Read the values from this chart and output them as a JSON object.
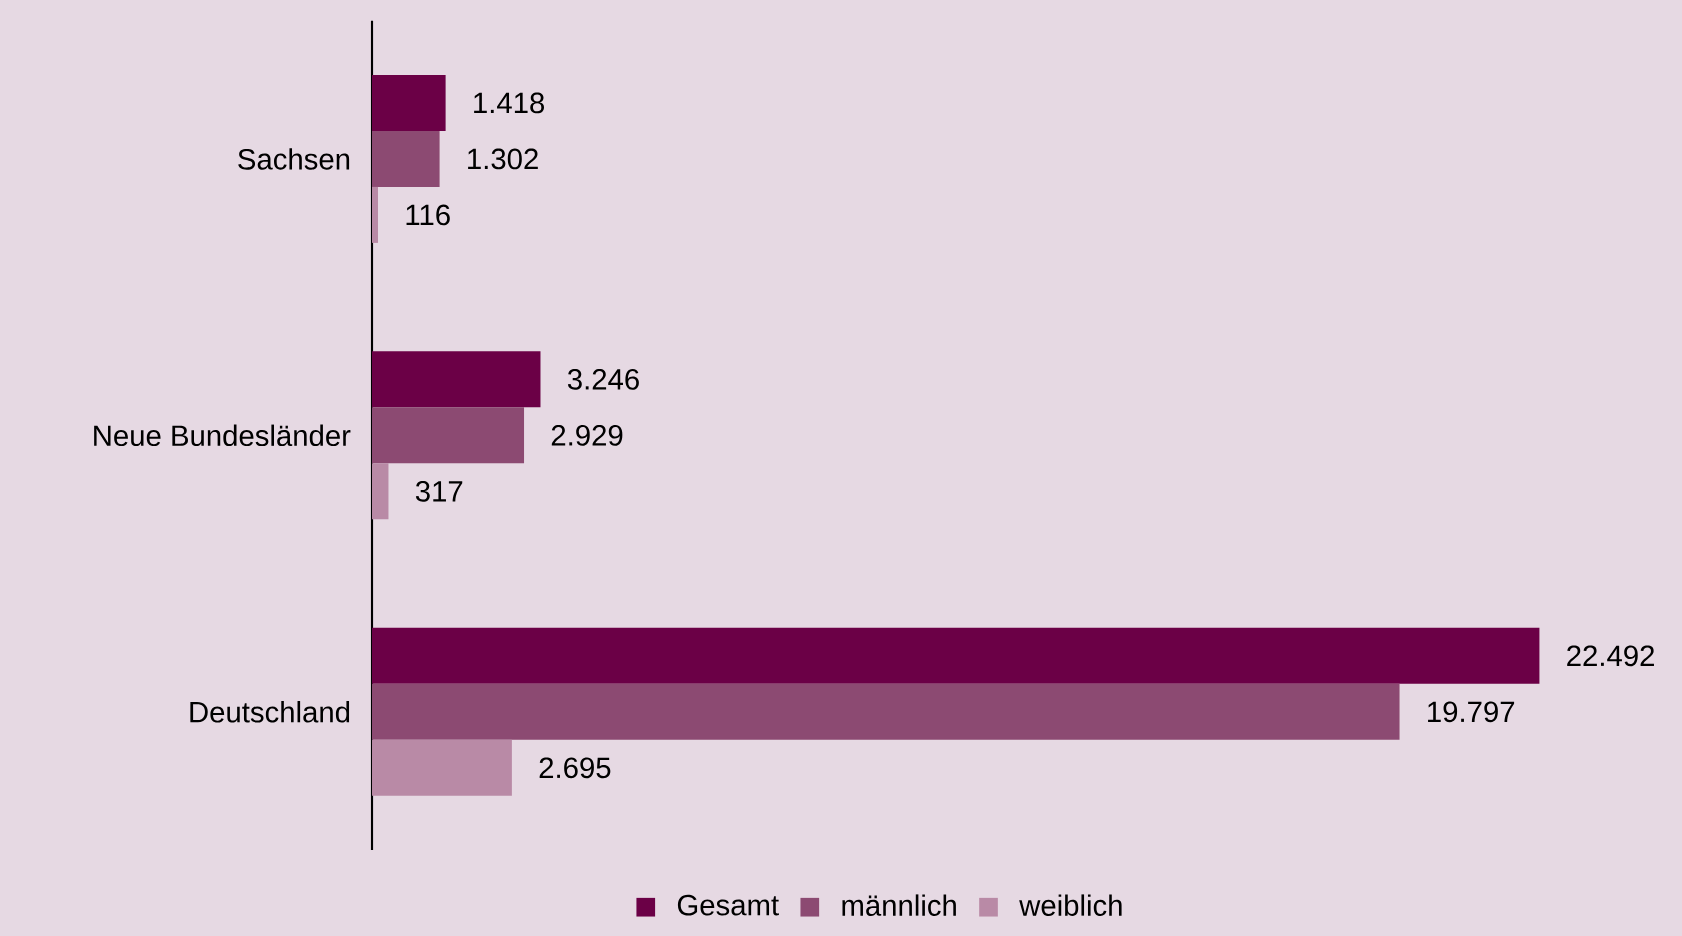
{
  "chart_data": {
    "type": "bar",
    "orientation": "horizontal",
    "categories": [
      "Sachsen",
      "Neue Bundesländer",
      "Deutschland"
    ],
    "series": [
      {
        "name": "Gesamt",
        "color": "#6b0046",
        "values": [
          1418,
          3246,
          22492
        ],
        "value_labels": [
          "1.418",
          "3.246",
          "22.492"
        ]
      },
      {
        "name": "männlich",
        "color": "#8c4a72",
        "values": [
          1302,
          2929,
          19797
        ],
        "value_labels": [
          "1.302",
          "2.929",
          "19.797"
        ]
      },
      {
        "name": "weiblich",
        "color": "#b98aa6",
        "values": [
          116,
          317,
          2695
        ],
        "value_labels": [
          "116",
          "317",
          "2.695"
        ]
      }
    ],
    "legend": "bottom"
  }
}
